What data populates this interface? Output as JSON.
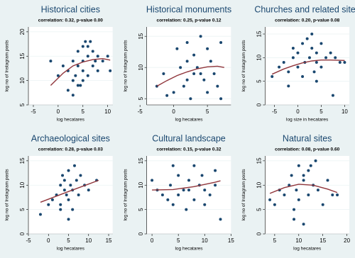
{
  "chart_data": [
    {
      "type": "scatter",
      "title": "Historical cities",
      "subtitle": "correlation: 0.32, p-value 0.00",
      "xlabel": "log hecatares",
      "ylabel": "log no of Instagram posts",
      "xlim": [
        -6,
        11
      ],
      "xticks": [
        -5,
        0,
        5,
        10
      ],
      "ylim": [
        5,
        21
      ],
      "yticks": [
        5,
        10,
        15,
        20
      ],
      "color": "#1a476f",
      "fit_color": "#90353b",
      "x": [
        -1.5,
        0,
        1,
        2,
        2,
        3,
        3,
        3.5,
        4,
        4,
        4.5,
        5,
        5,
        5,
        5.5,
        6,
        6,
        6.5,
        7,
        7,
        7.5,
        8,
        8,
        9,
        10,
        10.5,
        3,
        4,
        5,
        6
      ],
      "y": [
        14,
        11,
        13,
        12,
        8,
        14,
        10,
        11,
        16,
        13,
        9,
        17,
        14,
        12,
        18,
        15,
        11,
        18,
        16,
        13,
        14,
        15,
        12,
        14,
        15,
        12,
        7,
        9,
        10,
        17
      ],
      "fit": {
        "x": [
          -1.5,
          1,
          3,
          5,
          7,
          9,
          10.5
        ],
        "y": [
          9,
          11.5,
          13,
          13.8,
          14.3,
          14.5,
          14.2
        ]
      }
    },
    {
      "type": "scatter",
      "title": "Historical monuments",
      "subtitle": "correlation: 0.25, p-value 0.12",
      "xlabel": "log hecatares",
      "ylabel": "log no of Instagram posts",
      "xlim": [
        -4,
        8.5
      ],
      "xticks": [
        -5,
        0,
        5
      ],
      "ylim": [
        4,
        16.5
      ],
      "yticks": [
        5,
        10,
        15
      ],
      "color": "#1a476f",
      "fit_color": "#90353b",
      "x": [
        -2.5,
        -1.5,
        -1,
        0,
        0.5,
        1,
        1.5,
        2,
        2,
        2.5,
        3,
        3,
        3.5,
        4,
        4.5,
        5,
        5,
        5.5,
        6,
        6.5,
        7,
        7,
        4,
        2
      ],
      "y": [
        7,
        9,
        5.5,
        6,
        13,
        10,
        7,
        14,
        11,
        5,
        12,
        9,
        10,
        15,
        8,
        6,
        13,
        11,
        9,
        7,
        14,
        5,
        9,
        8
      ],
      "fit": {
        "x": [
          -2.5,
          -1,
          0.5,
          2,
          3.5,
          5,
          6.5,
          7.5
        ],
        "y": [
          7,
          7.9,
          8.7,
          9.3,
          9.8,
          10.1,
          10.2,
          10
        ]
      }
    },
    {
      "type": "scatter",
      "title": "Churches and related sites",
      "subtitle": "correlation: 0.20, p-value 0.08",
      "xlabel": "log size in hecatares",
      "ylabel": "log no of Instagram posts",
      "xlim": [
        -7,
        11
      ],
      "xticks": [
        -5,
        0,
        5,
        10
      ],
      "ylim": [
        0,
        16.5
      ],
      "yticks": [
        0,
        5,
        10,
        15
      ],
      "color": "#1a476f",
      "fit_color": "#90353b",
      "x": [
        -5.5,
        -4,
        -3,
        -2,
        -1,
        -1,
        0,
        0,
        1,
        1,
        1.5,
        2,
        2.5,
        3,
        3.5,
        4,
        4,
        5,
        5,
        6,
        7,
        7.5,
        8,
        9,
        10,
        -2,
        3,
        4
      ],
      "y": [
        6,
        8,
        9,
        7,
        10,
        12,
        8,
        11,
        13,
        6,
        9,
        14,
        10,
        12,
        7,
        11,
        9,
        13,
        8,
        10,
        11,
        2,
        10,
        9,
        9,
        4,
        15,
        5
      ],
      "fit": {
        "x": [
          -5.5,
          -3,
          -1,
          1,
          3,
          5,
          7,
          10
        ],
        "y": [
          6.5,
          7.6,
          8.3,
          8.9,
          9.3,
          9.5,
          9.5,
          9.4
        ]
      }
    },
    {
      "type": "scatter",
      "title": "Archaeological sites",
      "subtitle": "correlation: 0.28, p-value 0.03",
      "xlabel": "log hecatares",
      "ylabel": "log no of Instagram posts",
      "xlim": [
        -5,
        16
      ],
      "xticks": [
        -5,
        0,
        5,
        10,
        15
      ],
      "ylim": [
        0,
        16
      ],
      "yticks": [
        0,
        5,
        10,
        15
      ],
      "color": "#1a476f",
      "fit_color": "#90353b",
      "x": [
        -2,
        0,
        1,
        2,
        3,
        3,
        3.5,
        4,
        4,
        4.5,
        5,
        5,
        5.5,
        6,
        6,
        6.5,
        7,
        7.5,
        8,
        9,
        10,
        12,
        5,
        3
      ],
      "y": [
        4,
        6,
        7,
        8,
        10,
        6,
        12,
        9,
        11,
        8,
        13,
        7,
        10,
        9,
        5,
        14,
        11,
        8,
        12,
        10,
        9,
        11,
        3,
        5
      ],
      "fit": {
        "x": [
          -2,
          5,
          12.5
        ],
        "y": [
          6.5,
          8.7,
          11
        ]
      }
    },
    {
      "type": "scatter",
      "title": "Cultural landscape",
      "subtitle": "correlation: 0.15, p-value 0.32",
      "xlabel": "log hecatares",
      "ylabel": "log no of Instagram posts",
      "xlim": [
        -1,
        15
      ],
      "xticks": [
        0,
        5,
        10,
        15
      ],
      "ylim": [
        0,
        16
      ],
      "yticks": [
        0,
        5,
        10,
        15
      ],
      "color": "#1a476f",
      "fit_color": "#90353b",
      "x": [
        0,
        1,
        2,
        3,
        3.5,
        4,
        5,
        5,
        6,
        6.5,
        7,
        8,
        8,
        9,
        9.5,
        10,
        10,
        11,
        12,
        12,
        13,
        7,
        4
      ],
      "y": [
        11,
        9,
        8,
        7,
        10,
        6,
        12,
        8,
        9,
        5,
        11,
        14,
        7,
        10,
        12,
        6,
        9,
        8,
        10,
        13,
        3,
        9,
        14
      ],
      "fit": {
        "x": [
          0,
          4,
          8,
          12,
          13
        ],
        "y": [
          9,
          9.1,
          9.7,
          10.6,
          10.9
        ]
      }
    },
    {
      "type": "scatter",
      "title": "Natural sites",
      "subtitle": "correlation: 0.08, p-value 0.60",
      "xlabel": "log hecatares",
      "ylabel": "log no of Instagram posts",
      "xlim": [
        3,
        20.5
      ],
      "xticks": [
        5,
        10,
        15,
        20
      ],
      "ylim": [
        0,
        16
      ],
      "yticks": [
        0,
        5,
        10,
        15
      ],
      "color": "#1a476f",
      "fit_color": "#90353b",
      "x": [
        4,
        5,
        6,
        7,
        8,
        8.5,
        9,
        9.5,
        10,
        10,
        11,
        11,
        12,
        12,
        13,
        13.5,
        14,
        15,
        16,
        17,
        9,
        11,
        12.5,
        18
      ],
      "y": [
        7,
        6,
        9,
        8,
        10,
        12,
        5,
        9,
        14,
        7,
        11,
        2,
        13,
        8,
        10,
        15,
        9,
        6,
        11,
        8,
        3,
        12,
        14,
        8
      ],
      "fit": {
        "x": [
          4,
          7,
          10,
          13,
          16,
          18
        ],
        "y": [
          8.3,
          9.5,
          10.2,
          10,
          9.2,
          8.5
        ]
      }
    }
  ]
}
